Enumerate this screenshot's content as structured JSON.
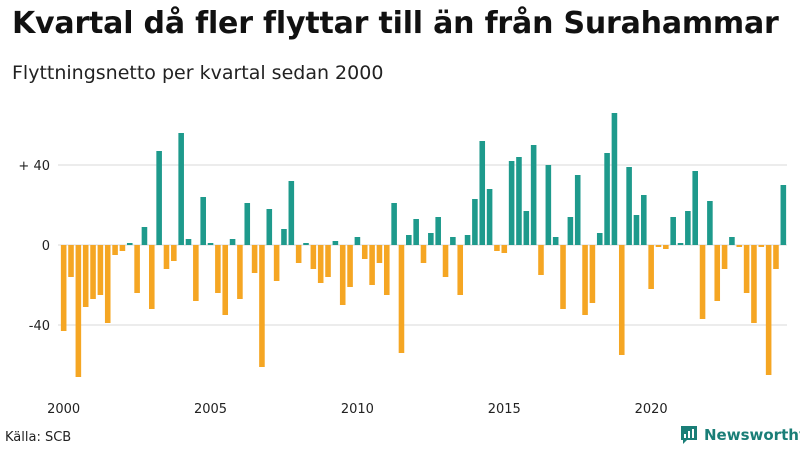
{
  "title": "Kvartal då fler flyttar till än från Surahammar",
  "subtitle": "Flyttningsnetto per kvartal sedan 2000",
  "source": "Källa: SCB",
  "brand": "Newsworthy",
  "colors": {
    "positive": "#1e9a8c",
    "negative": "#f5a623",
    "grid": "#d9d9d9",
    "brand": "#1a7e77"
  },
  "chart_data": {
    "type": "bar",
    "x_label_ticks": [
      "2000",
      "2005",
      "2010",
      "2015",
      "2020"
    ],
    "y_ticks": [
      {
        "value": 40,
        "label": "+ 40"
      },
      {
        "value": 0,
        "label": "0"
      },
      {
        "value": -40,
        "label": "-40"
      }
    ],
    "ylim": [
      -68,
      68
    ],
    "grid": true,
    "series": [
      {
        "values": [
          -43,
          -16,
          -66,
          -31,
          -27,
          -25,
          -39,
          -5,
          -3,
          1,
          -24,
          9,
          -32,
          47,
          -12,
          -8,
          56,
          3,
          -28,
          24,
          1,
          -24,
          -35,
          3,
          -27,
          21,
          -14,
          -61,
          18,
          -18,
          8,
          32,
          -9,
          1,
          -12,
          -19,
          -16,
          2,
          -30,
          -21,
          4,
          -7,
          -20,
          -9,
          -25,
          21,
          -54,
          5,
          13,
          -9,
          6,
          14,
          -16,
          4,
          -25,
          5,
          23,
          52,
          28,
          -3,
          -4,
          42,
          44,
          17,
          50,
          -15,
          40,
          4,
          -32,
          14,
          35,
          -35,
          -29,
          6,
          46,
          66,
          -55,
          39,
          15,
          25,
          -22,
          -1,
          -2,
          14,
          1,
          17,
          37,
          -37,
          22,
          -28,
          -12,
          4,
          -1,
          -24,
          -39,
          -1,
          -65,
          -12,
          30
        ]
      }
    ]
  }
}
